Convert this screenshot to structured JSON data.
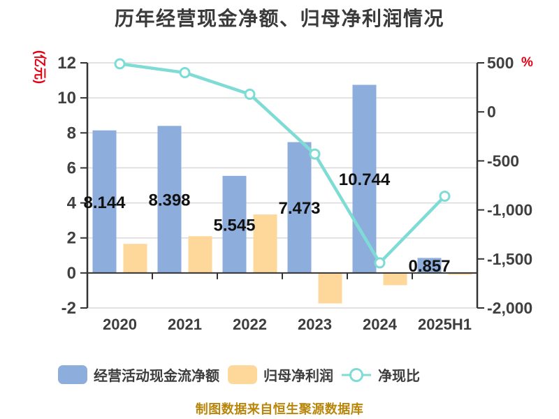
{
  "page": {
    "title": "历年经营现金净额、归母净利润情况",
    "footer": "制图数据来自恒生聚源数据库"
  },
  "chart_data": {
    "type": "bar+line",
    "title": "历年经营现金净额、归母净利润情况",
    "categories": [
      "2020",
      "2021",
      "2022",
      "2023",
      "2024",
      "2025H1"
    ],
    "series": [
      {
        "name": "经营活动现金流净额",
        "type": "bar",
        "axis": "left",
        "color": "#8daedd",
        "values": [
          8.144,
          8.398,
          5.545,
          7.473,
          10.744,
          0.857
        ],
        "labels": [
          "8.144",
          "8.398",
          "5.545",
          "7.473",
          "10.744",
          "0.857"
        ]
      },
      {
        "name": "归母净利润",
        "type": "bar",
        "axis": "left",
        "color": "#fdd89a",
        "values": [
          1.66,
          2.1,
          3.34,
          -1.74,
          -0.7,
          -0.1
        ],
        "values_estimated": true
      },
      {
        "name": "净现比",
        "type": "line",
        "axis": "right",
        "color": "#7edcd5",
        "values": [
          490,
          400,
          180,
          -430,
          -1540,
          -860
        ],
        "values_estimated": true
      }
    ],
    "left_axis": {
      "label": "(亿元)",
      "label_color": "#e60012",
      "min": -2,
      "max": 12,
      "ticks": [
        12,
        10,
        8,
        6,
        4,
        2,
        0,
        -2
      ]
    },
    "right_axis": {
      "label": "%",
      "label_color": "#e60012",
      "min": -2000,
      "max": 500,
      "ticks": [
        500,
        0,
        -500,
        -1000,
        -1500,
        -2000
      ],
      "tick_labels": [
        "500",
        "0",
        "-500",
        "-1,000",
        "-1,500",
        "-2,000"
      ]
    },
    "grid": true,
    "legend_position": "bottom"
  },
  "legend": {
    "items": [
      {
        "label": "经营活动现金流净额",
        "swatch": "bar",
        "color": "#8daedd"
      },
      {
        "label": "归母净利润",
        "swatch": "bar",
        "color": "#fdd89a"
      },
      {
        "label": "净现比",
        "swatch": "line-marker",
        "color": "#7edcd5"
      }
    ]
  },
  "colors": {
    "bar_cashflow": "#8daedd",
    "bar_profit": "#fdd89a",
    "ratio_line": "#7edcd5",
    "axis": "#333333",
    "grid": "#d9d9d9",
    "tick_text": "#404040",
    "title_text": "#3a3a3a",
    "unit_text": "#e60012",
    "footer_text": "#b8860b"
  }
}
